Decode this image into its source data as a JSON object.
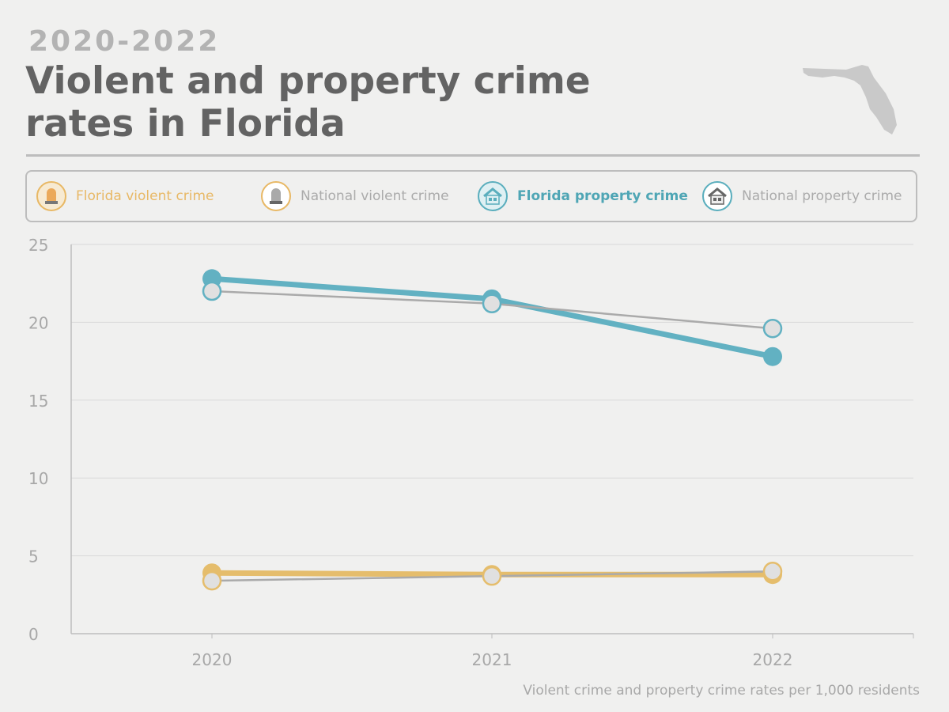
{
  "header": {
    "subtitle": "2020-2022",
    "title": "Violent and property crime rates in Florida"
  },
  "legend": [
    {
      "label": "Florida violent crime",
      "icon": "siren-icon",
      "color": "#e8b865",
      "text_color": "#e8b865"
    },
    {
      "label": "National violent crime",
      "icon": "siren-icon",
      "color": "#e8b865",
      "text_color": "#ababab"
    },
    {
      "label": "Florida property crime",
      "icon": "house-icon",
      "color": "#5aaebd",
      "text_color": "#4fa6b5"
    },
    {
      "label": "National property crime",
      "icon": "house-icon",
      "color": "#5aaebd",
      "text_color": "#ababab"
    }
  ],
  "footnote": "Violent crime and property crime rates per 1,000 residents",
  "chart_data": {
    "type": "line",
    "categories": [
      "2020",
      "2021",
      "2022"
    ],
    "ylim": [
      0,
      25
    ],
    "yticks": [
      0,
      5,
      10,
      15,
      20,
      25
    ],
    "grid": true,
    "legend_position": "top",
    "series": [
      {
        "name": "Florida violent crime",
        "values": [
          3.9,
          3.8,
          3.8
        ],
        "color": "#e5bd6c",
        "style": "thick-filled"
      },
      {
        "name": "National violent crime",
        "values": [
          3.4,
          3.7,
          4.0
        ],
        "color": "#aaaaaa",
        "marker_border": "#e5bd6c",
        "style": "thin-hollow"
      },
      {
        "name": "Florida property crime",
        "values": [
          22.8,
          21.5,
          17.8
        ],
        "color": "#62b1c2",
        "style": "thick-filled"
      },
      {
        "name": "National property crime",
        "values": [
          22.0,
          21.2,
          19.6
        ],
        "color": "#aaaaaa",
        "marker_border": "#62b1c2",
        "style": "thin-hollow"
      }
    ]
  }
}
